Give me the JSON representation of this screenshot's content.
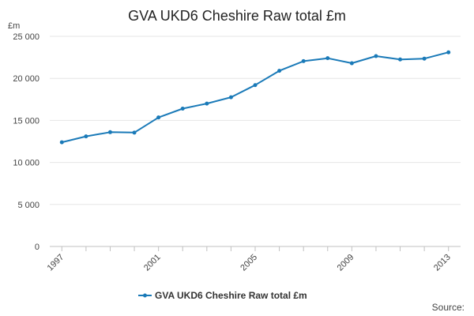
{
  "chart_data": {
    "type": "line",
    "title": "GVA UKD6 Cheshire Raw total £m",
    "unit_label": "£m",
    "x": [
      1997,
      1998,
      1999,
      2000,
      2001,
      2002,
      2003,
      2004,
      2005,
      2006,
      2007,
      2008,
      2009,
      2010,
      2011,
      2012,
      2013
    ],
    "x_tick_labels": [
      "1997",
      "2001",
      "2005",
      "2009",
      "2013"
    ],
    "x_tick_values": [
      1997,
      2001,
      2005,
      2009,
      2013
    ],
    "y_tick_labels": [
      "0",
      "5 000",
      "10 000",
      "15 000",
      "20 000",
      "25 000"
    ],
    "y_tick_values": [
      0,
      5000,
      10000,
      15000,
      20000,
      25000
    ],
    "ylim": [
      0,
      25000
    ],
    "grid": true,
    "legend_position": "bottom-center",
    "series": [
      {
        "name": "GVA UKD6 Cheshire Raw total £m",
        "color": "#1a7ab8",
        "values": [
          12400,
          13100,
          13600,
          13550,
          15350,
          16400,
          17000,
          17750,
          19200,
          20900,
          22050,
          22400,
          21800,
          22650,
          22250,
          22350,
          23100
        ]
      }
    ],
    "source_label": "Source:"
  }
}
